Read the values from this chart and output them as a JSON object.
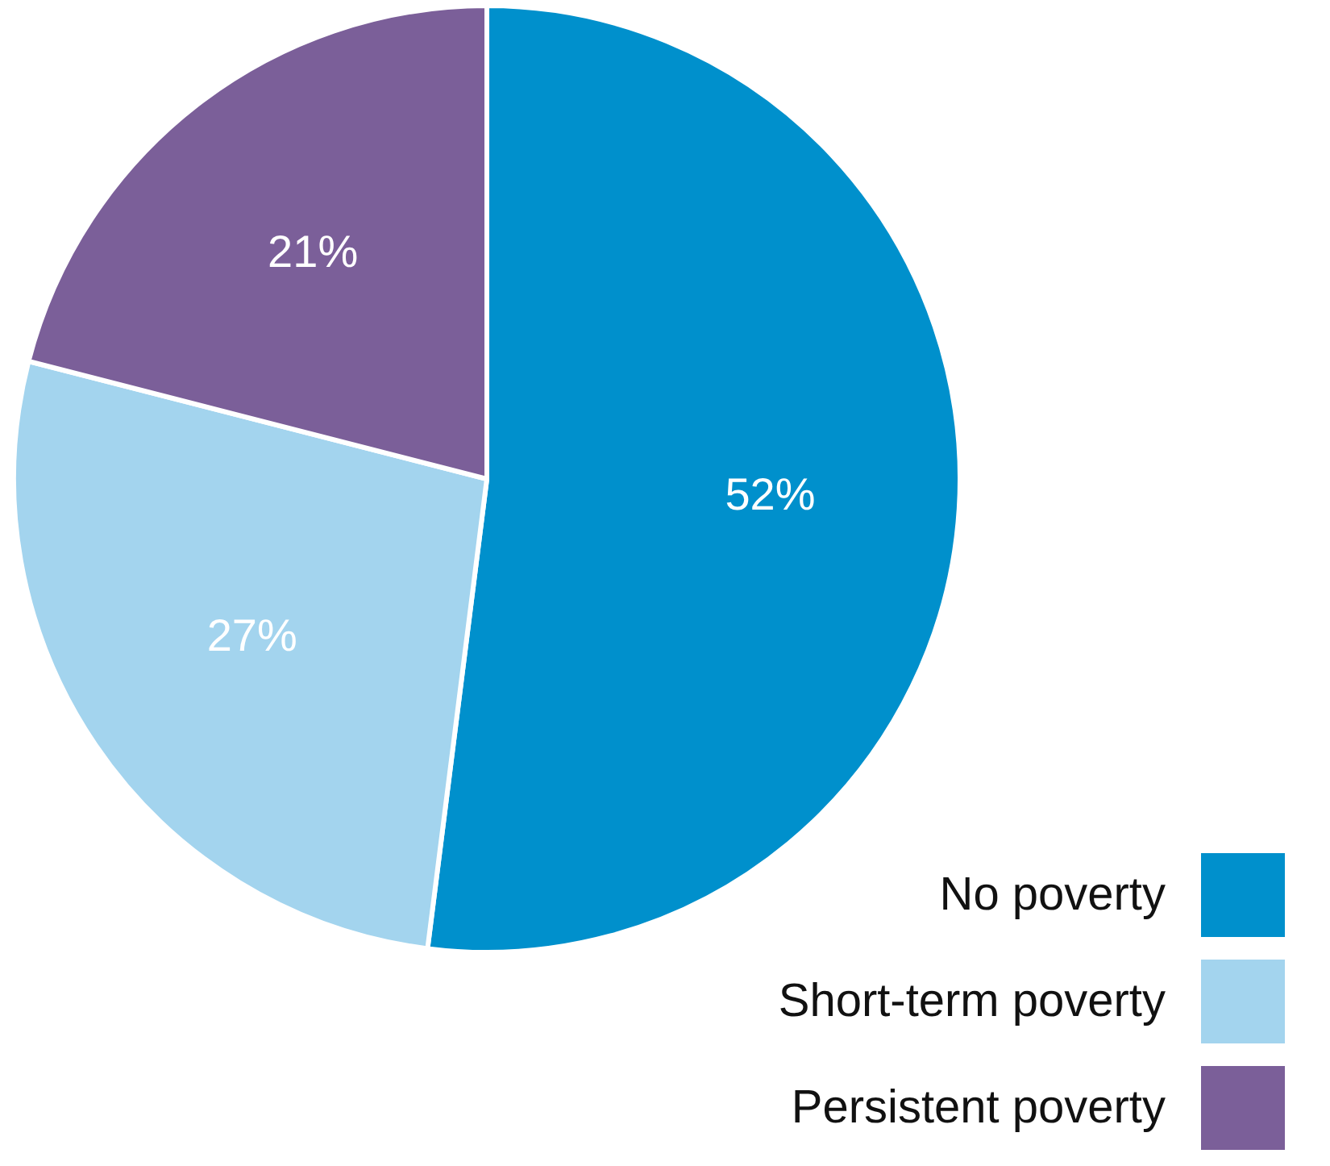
{
  "chart_data": {
    "type": "pie",
    "categories": [
      "No poverty",
      "Short-term poverty",
      "Persistent poverty"
    ],
    "values": [
      52,
      27,
      21
    ],
    "colors": [
      "#0090cc",
      "#a3d4ee",
      "#7b5f99"
    ],
    "value_labels": [
      "52%",
      "27%",
      "21%"
    ],
    "legend": "bottom right"
  }
}
